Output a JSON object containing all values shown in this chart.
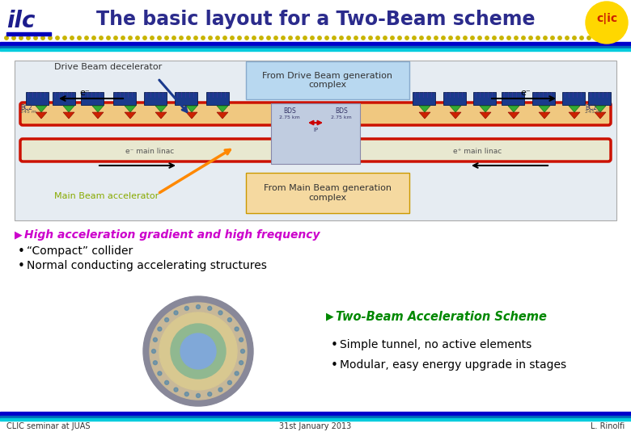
{
  "title": "The basic layout for a Two-Beam scheme",
  "title_color": "#2B2B8C",
  "title_fontsize": 17,
  "bg_color": "#FFFFFF",
  "header_dot_color": "#C8B400",
  "header_line_color1": "#0000CC",
  "header_line_color2": "#00CCDD",
  "footer_line_color1": "#0000CC",
  "footer_line_color2": "#00CCDD",
  "footer_left": "CLIC seminar at JUAS",
  "footer_center": "31st January 2013",
  "footer_right": "L. Rinolfi",
  "diagram_bg": "#E6ECF2",
  "drive_beam_box_color": "#B8D8F0",
  "main_beam_box_color": "#F5D9A0",
  "bullet1_color": "#CC00CC",
  "bullet1_text": "High acceleration gradient and high frequency",
  "bullet2_text1": "“Compact” collider",
  "bullet2_text2": "Normal conducting accelerating structures",
  "bullet3_color": "#008800",
  "bullet3_text": "Two-Beam Acceleration Scheme",
  "bullet4_text1": "Simple tunnel, no active elements",
  "bullet4_text2": "Modular, easy energy upgrade in stages",
  "label_drive_beam": "Drive Beam decelerator",
  "label_main_beam": "Main Beam accelerator",
  "label_from_drive": "From Drive Beam generation\ncomplex",
  "label_from_main": "From Main Beam generation\ncomplex",
  "label_eminus1": "e⁻",
  "label_eminus2": "e⁻",
  "beam_orange": "#FF8800",
  "beam_blue_dark": "#1A3A8C",
  "beam_red": "#CC2200",
  "beam_green": "#228B22",
  "arrow_blue": "#1A3A8C"
}
